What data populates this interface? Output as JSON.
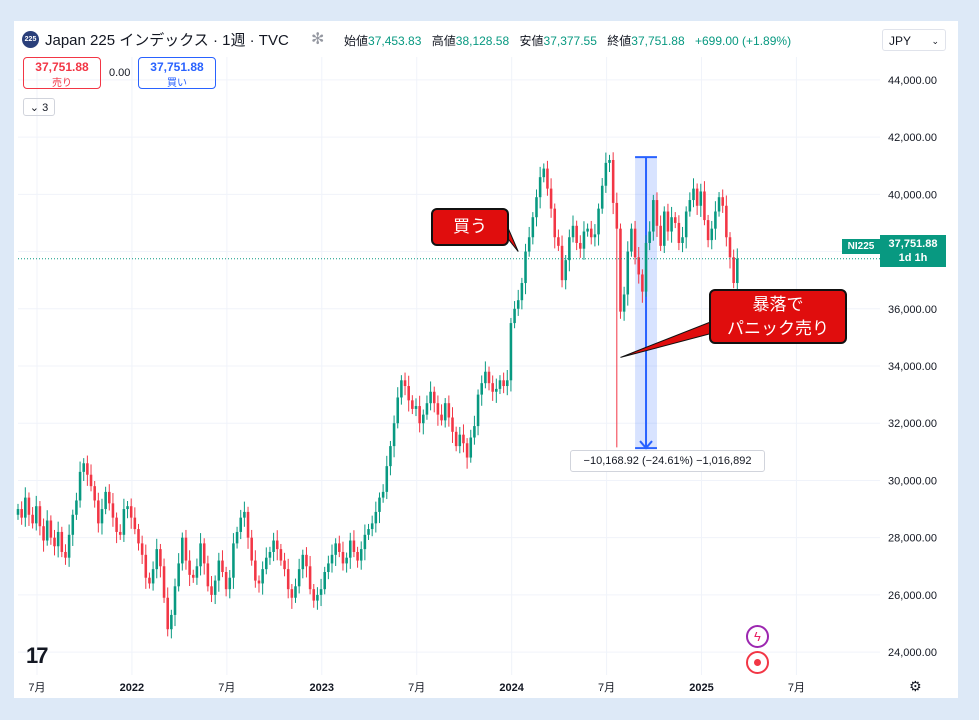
{
  "header": {
    "logo_text": "225",
    "symbol_title": "Japan 225 インデックス · 1週 · TVC",
    "ohlc": {
      "open_label": "始値",
      "open": "37,453.83",
      "high_label": "高値",
      "high": "38,128.58",
      "low_label": "安値",
      "low": "37,377.55",
      "close_label": "終値",
      "close": "37,751.88",
      "change": "+699.00 (+1.89%)"
    },
    "currency": "JPY"
  },
  "trade": {
    "sell_price": "37,751.88",
    "sell_label": "売り",
    "spread": "0.00",
    "buy_price": "37,751.88",
    "buy_label": "買い"
  },
  "indicators_count": "3",
  "annotations": {
    "buy_callout": "買う",
    "crash_callout_line1": "暴落で",
    "crash_callout_line2": "パニック売り",
    "measure": "−10,168.92 (−24.61%) −1,016,892"
  },
  "price_scale": {
    "symbol_tag": "NI225",
    "last_price": "37,751.88",
    "countdown": "1d 1h"
  },
  "colors": {
    "up": "#089981",
    "down": "#f23645",
    "callout": "#e00d0d",
    "measure": "#2962ff"
  },
  "chart_data": {
    "type": "candlestick",
    "timeframe": "1W",
    "y_ticks": [
      24000,
      26000,
      28000,
      30000,
      32000,
      34000,
      36000,
      38000,
      40000,
      42000,
      44000
    ],
    "y_tick_labels": [
      "24,000.00",
      "26,000.00",
      "28,000.00",
      "30,000.00",
      "32,000.00",
      "34,000.00",
      "36,000.00",
      "38,000.00",
      "40,000.00",
      "42,000.00",
      "44,000.00"
    ],
    "ylim": [
      23200,
      44800
    ],
    "x_ticks": [
      {
        "t": 2021.5,
        "label": "7月"
      },
      {
        "t": 2022.0,
        "label": "2022"
      },
      {
        "t": 2022.5,
        "label": "7月"
      },
      {
        "t": 2023.0,
        "label": "2023"
      },
      {
        "t": 2023.5,
        "label": "7月"
      },
      {
        "t": 2024.0,
        "label": "2024"
      },
      {
        "t": 2024.5,
        "label": "7月"
      },
      {
        "t": 2025.0,
        "label": "2025"
      },
      {
        "t": 2025.5,
        "label": "7月"
      }
    ],
    "xlim": [
      2021.4,
      2025.94
    ],
    "first_week": 2021.4,
    "weeks_per_year": 52,
    "closes": [
      29000,
      28700,
      29400,
      28800,
      28500,
      29100,
      28400,
      27900,
      28600,
      28000,
      27700,
      28200,
      27500,
      27300,
      28100,
      28800,
      29300,
      30300,
      30600,
      30200,
      29800,
      29300,
      28500,
      29000,
      29600,
      29200,
      28700,
      28200,
      28100,
      29000,
      29100,
      28700,
      28300,
      27800,
      27400,
      26600,
      26400,
      26900,
      27600,
      27000,
      25900,
      24800,
      25300,
      26300,
      27100,
      28000,
      27200,
      26700,
      26600,
      27000,
      27800,
      27100,
      26300,
      26000,
      26500,
      27200,
      26800,
      26200,
      26600,
      27800,
      28200,
      28700,
      28900,
      28000,
      27200,
      26500,
      26400,
      26900,
      27300,
      27500,
      27900,
      27600,
      27200,
      26900,
      26200,
      25900,
      26300,
      26900,
      27400,
      27000,
      26200,
      25800,
      26000,
      26200,
      26800,
      27100,
      27400,
      27800,
      27500,
      27100,
      27300,
      27900,
      27500,
      27200,
      27600,
      28100,
      28300,
      28500,
      28900,
      29400,
      29600,
      30500,
      31200,
      32000,
      32900,
      33500,
      33300,
      32800,
      32500,
      32600,
      32000,
      32300,
      32700,
      33100,
      32700,
      32300,
      32100,
      32700,
      32200,
      31700,
      31200,
      31600,
      31300,
      30800,
      31500,
      31900,
      33000,
      33400,
      33800,
      33400,
      33100,
      33200,
      33500,
      33300,
      33500,
      35500,
      36000,
      36300,
      36900,
      38000,
      38500,
      39200,
      39900,
      40600,
      40900,
      40200,
      39500,
      38500,
      38200,
      37000,
      37700,
      38500,
      38900,
      38300,
      38100,
      38700,
      38800,
      38500,
      38600,
      39500,
      40300,
      41100,
      41200,
      39700,
      38800,
      35900,
      36500,
      38000,
      38800,
      37800,
      37200,
      36600,
      38300,
      38700,
      39800,
      38900,
      38200,
      39400,
      38700,
      39200,
      39000,
      38300,
      38500,
      39400,
      39800,
      40200,
      39600,
      40100,
      39100,
      38400,
      38800,
      39400,
      39900,
      39600,
      38500,
      37800,
      36900,
      37750
    ],
    "crash_low": 31156,
    "crash_week_index": 164,
    "measure_from": 41300,
    "measure_to": 31131
  }
}
